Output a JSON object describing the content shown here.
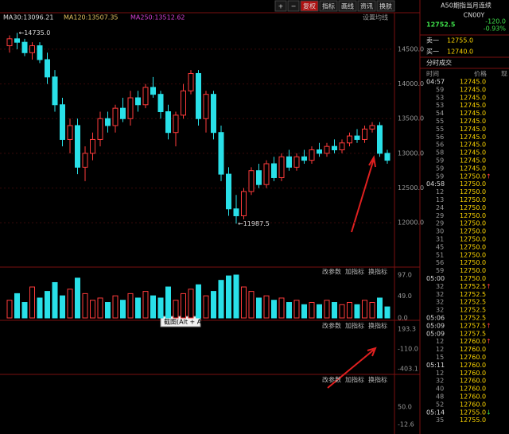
{
  "toolbar": [
    "+",
    "−",
    "复权",
    "指标",
    "画线",
    "资讯",
    "换肤"
  ],
  "legend": [
    "MA30:13096.21",
    "MA120:13507.35",
    "MA250:13512.62"
  ],
  "ma_setting": "设置均线",
  "chart": {
    "type": "candlestick",
    "ylim": [
      11430,
      14980
    ],
    "yticks": [
      {
        "value": 14500,
        "label": "14500.0"
      },
      {
        "value": 14000,
        "label": "14000.0"
      },
      {
        "value": 13500,
        "label": "13500.0"
      },
      {
        "value": 13000,
        "label": "13000.0"
      },
      {
        "value": 12500,
        "label": "12500.0"
      },
      {
        "value": 12000,
        "label": "12000.0"
      }
    ],
    "up_color": "#ff3b3b",
    "down_color": "#29e0e8",
    "candles": [
      [
        14550,
        14700,
        14450,
        14650
      ],
      [
        14650,
        14735,
        14500,
        14600
      ],
      [
        14600,
        14650,
        14400,
        14450
      ],
      [
        14450,
        14600,
        14350,
        14550
      ],
      [
        14550,
        14600,
        14300,
        14350
      ],
      [
        14350,
        14450,
        14000,
        14100
      ],
      [
        14100,
        14200,
        13600,
        13700
      ],
      [
        13700,
        13800,
        13100,
        13200
      ],
      [
        13200,
        13500,
        13000,
        13400
      ],
      [
        13400,
        13500,
        12700,
        12800
      ],
      [
        12800,
        13100,
        12600,
        13000
      ],
      [
        13000,
        13300,
        12900,
        13200
      ],
      [
        13200,
        13600,
        13100,
        13500
      ],
      [
        13500,
        13600,
        13300,
        13400
      ],
      [
        13400,
        13700,
        13300,
        13650
      ],
      [
        13650,
        13800,
        13450,
        13500
      ],
      [
        13500,
        13900,
        13400,
        13800
      ],
      [
        13800,
        13900,
        13600,
        13700
      ],
      [
        13700,
        14000,
        13650,
        13950
      ],
      [
        13950,
        14100,
        13800,
        13850
      ],
      [
        13850,
        13900,
        13500,
        13600
      ],
      [
        13600,
        13700,
        13200,
        13300
      ],
      [
        13300,
        13600,
        13100,
        13550
      ],
      [
        13550,
        14000,
        13500,
        13900
      ],
      [
        13900,
        14200,
        13850,
        14150
      ],
      [
        14150,
        14200,
        13400,
        13500
      ],
      [
        13500,
        13900,
        13300,
        13850
      ],
      [
        13850,
        13900,
        13200,
        13300
      ],
      [
        13300,
        13400,
        12600,
        12700
      ],
      [
        12700,
        12800,
        12100,
        12200
      ],
      [
        12200,
        12400,
        11987.5,
        12100
      ],
      [
        12100,
        12500,
        12050,
        12450
      ],
      [
        12450,
        12800,
        12400,
        12750
      ],
      [
        12750,
        12850,
        12500,
        12550
      ],
      [
        12550,
        12900,
        12500,
        12850
      ],
      [
        12850,
        12950,
        12600,
        12650
      ],
      [
        12650,
        13000,
        12600,
        12950
      ],
      [
        12950,
        13050,
        12750,
        12800
      ],
      [
        12800,
        13000,
        12750,
        12950
      ],
      [
        12950,
        13050,
        12850,
        12900
      ],
      [
        12900,
        13100,
        12850,
        13050
      ],
      [
        13050,
        13150,
        12950,
        13000
      ],
      [
        13000,
        13150,
        12950,
        13100
      ],
      [
        13100,
        13200,
        13000,
        13050
      ],
      [
        13050,
        13200,
        13000,
        13150
      ],
      [
        13150,
        13300,
        13100,
        13250
      ],
      [
        13250,
        13350,
        13150,
        13200
      ],
      [
        13200,
        13400,
        13150,
        13350
      ],
      [
        13350,
        13450,
        13300,
        13400
      ],
      [
        13400,
        13450,
        12950,
        13000
      ],
      [
        13000,
        13050,
        12850,
        12900
      ]
    ],
    "high_label": "←14735.0",
    "low_label": "←11987.5"
  },
  "volume": {
    "yticks": [
      {
        "value": 97,
        "label": "97.0"
      },
      {
        "value": 49,
        "label": "49.0"
      },
      {
        "value": 0,
        "label": "0.0"
      }
    ],
    "ylim": [
      0,
      97
    ],
    "values": [
      40,
      55,
      35,
      70,
      45,
      60,
      80,
      50,
      65,
      90,
      55,
      40,
      45,
      35,
      50,
      40,
      55,
      45,
      60,
      50,
      45,
      70,
      40,
      55,
      65,
      75,
      50,
      60,
      85,
      95,
      97,
      70,
      60,
      45,
      50,
      40,
      45,
      35,
      40,
      30,
      35,
      30,
      40,
      35,
      30,
      35,
      30,
      40,
      35,
      45,
      25
    ]
  },
  "pane_buttons": [
    "改参数",
    "加指标",
    "换指标"
  ],
  "macd_ticks": [
    "193.3",
    "-110.0",
    "-403.1"
  ],
  "kdj_ticks": [
    "50.0",
    "-12.6"
  ],
  "tooltip": "截图(Alt + A)",
  "quote": {
    "name": "A50期指当月连续",
    "code": "CN00Y",
    "price": "12752.5",
    "change": "-120.0",
    "pct": "-0.93%",
    "sell_label": "卖一",
    "sell": "12755.0",
    "buy_label": "买一",
    "buy": "12740.0"
  },
  "ticks_panel": {
    "title": "分时成交",
    "headers": [
      "时间",
      "价格",
      "现"
    ],
    "rows": [
      [
        "04:57",
        "12745.0",
        ""
      ],
      [
        "59",
        "12745.0",
        ""
      ],
      [
        "53",
        "12745.0",
        ""
      ],
      [
        "53",
        "12745.0",
        ""
      ],
      [
        "54",
        "12745.0",
        ""
      ],
      [
        "55",
        "12745.0",
        ""
      ],
      [
        "55",
        "12745.0",
        ""
      ],
      [
        "56",
        "12745.0",
        ""
      ],
      [
        "56",
        "12745.0",
        ""
      ],
      [
        "58",
        "12745.0",
        ""
      ],
      [
        "59",
        "12745.0",
        ""
      ],
      [
        "59",
        "12745.0",
        ""
      ],
      [
        "59",
        "12750.0",
        "↑"
      ],
      [
        "04:58",
        "12750.0",
        ""
      ],
      [
        "12",
        "12750.0",
        ""
      ],
      [
        "13",
        "12750.0",
        ""
      ],
      [
        "24",
        "12750.0",
        ""
      ],
      [
        "29",
        "12750.0",
        ""
      ],
      [
        "29",
        "12750.0",
        ""
      ],
      [
        "30",
        "12750.0",
        ""
      ],
      [
        "31",
        "12750.0",
        ""
      ],
      [
        "45",
        "12750.0",
        ""
      ],
      [
        "51",
        "12750.0",
        ""
      ],
      [
        "56",
        "12750.0",
        ""
      ],
      [
        "59",
        "12750.0",
        ""
      ],
      [
        "05:00",
        "12750.0",
        ""
      ],
      [
        "32",
        "12752.5",
        "↑"
      ],
      [
        "32",
        "12752.5",
        ""
      ],
      [
        "32",
        "12752.5",
        ""
      ],
      [
        "32",
        "12752.5",
        ""
      ],
      [
        "05:06",
        "12752.5",
        ""
      ],
      [
        "05:09",
        "12757.5",
        "↑"
      ],
      [
        "05:09",
        "12757.5",
        ""
      ],
      [
        "12",
        "12760.0",
        "↑"
      ],
      [
        "12",
        "12760.0",
        ""
      ],
      [
        "15",
        "12760.0",
        ""
      ],
      [
        "05:11",
        "12760.0",
        ""
      ],
      [
        "12",
        "12760.0",
        ""
      ],
      [
        "32",
        "12760.0",
        ""
      ],
      [
        "40",
        "12760.0",
        ""
      ],
      [
        "48",
        "12760.0",
        ""
      ],
      [
        "52",
        "12760.0",
        ""
      ],
      [
        "05:14",
        "12755.0",
        "↓"
      ],
      [
        "35",
        "12755.0",
        ""
      ]
    ]
  }
}
